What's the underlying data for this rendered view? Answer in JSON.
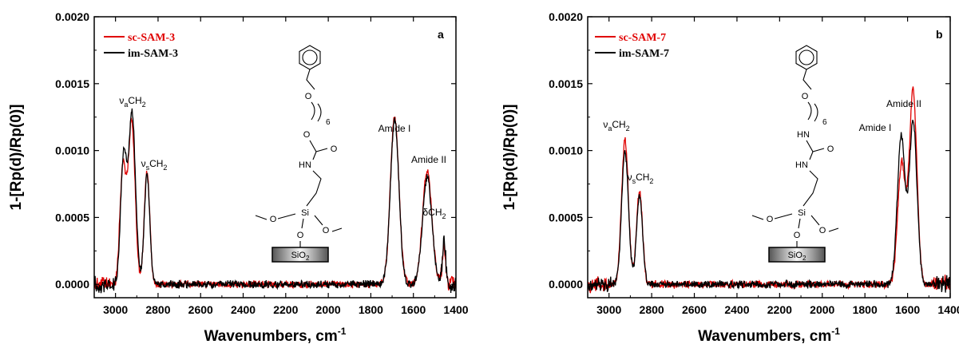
{
  "chart_data": [
    {
      "type": "line",
      "panel_label": "a",
      "xlabel": "Wavenumbers, cm",
      "xlabel_sup": "-1",
      "ylabel": "1-[Rp(d)/Rp(0)]",
      "xlim": [
        3100,
        1400
      ],
      "ylim": [
        -0.0001,
        0.002
      ],
      "x_ticks": [
        "3000",
        "2800",
        "2600",
        "2400",
        "2200",
        "2000",
        "1800",
        "1600",
        "1400"
      ],
      "y_ticks": [
        "0.0000",
        "0.0005",
        "0.0010",
        "0.0015",
        "0.0020"
      ],
      "legend_position": "top-left",
      "series": [
        {
          "name": "sc-SAM-3",
          "color": "#e00000",
          "peaks": [
            [
              2965,
              0.00088,
              14
            ],
            [
              2924,
              0.00122,
              16
            ],
            [
              2852,
              0.00084,
              13
            ],
            [
              1688,
              0.00125,
              20
            ],
            [
              1535,
              0.00085,
              22
            ],
            [
              1456,
              0.00028,
              8
            ]
          ]
        },
        {
          "name": "im-SAM-3",
          "color": "#000000",
          "peaks": [
            [
              2962,
              0.00095,
              14
            ],
            [
              2922,
              0.00128,
              16
            ],
            [
              2852,
              0.00082,
              13
            ],
            [
              1688,
              0.00123,
              20
            ],
            [
              1535,
              0.0008,
              22
            ],
            [
              1456,
              0.0003,
              8
            ]
          ]
        }
      ],
      "annotations": [
        {
          "text": "ν",
          "sub": "a",
          "tail": "CH",
          "tail_sub": "2"
        },
        {
          "text": "ν",
          "sub": "s",
          "tail": "CH",
          "tail_sub": "2"
        },
        {
          "text": "Amide I"
        },
        {
          "text": "Amide II"
        },
        {
          "text": "δCH",
          "tail_sub": "2"
        }
      ],
      "structure": {
        "repeat": "6",
        "atoms": [
          "O",
          "O",
          "O",
          "HN",
          "Si",
          "O",
          "O",
          "O"
        ],
        "substrate": "SiO",
        "substrate_sub": "2"
      }
    },
    {
      "type": "line",
      "panel_label": "b",
      "xlabel": "Wavenumbers, cm",
      "xlabel_sup": "-1",
      "ylabel": "1-[Rp(d)/Rp(0)]",
      "xlim": [
        3100,
        1400
      ],
      "ylim": [
        -0.0001,
        0.002
      ],
      "x_ticks": [
        "3000",
        "2800",
        "2600",
        "2400",
        "2200",
        "2000",
        "1800",
        "1600",
        "1400"
      ],
      "y_ticks": [
        "0.0000",
        "0.0005",
        "0.0010",
        "0.0015",
        "0.0020"
      ],
      "legend_position": "top-left",
      "series": [
        {
          "name": "sc-SAM-7",
          "color": "#e00000",
          "peaks": [
            [
              2925,
              0.00108,
              16
            ],
            [
              2857,
              0.0007,
              14
            ],
            [
              1628,
              0.0009,
              18
            ],
            [
              1574,
              0.00145,
              18
            ]
          ]
        },
        {
          "name": "im-SAM-7",
          "color": "#000000",
          "peaks": [
            [
              2925,
              0.00099,
              16
            ],
            [
              2857,
              0.00066,
              14
            ],
            [
              1630,
              0.0011,
              18
            ],
            [
              1574,
              0.00122,
              18
            ]
          ]
        }
      ],
      "annotations": [
        {
          "text": "ν",
          "sub": "a",
          "tail": "CH",
          "tail_sub": "2"
        },
        {
          "text": "ν",
          "sub": "s",
          "tail": "CH",
          "tail_sub": "2"
        },
        {
          "text": "Amide I"
        },
        {
          "text": "Amide II"
        }
      ],
      "structure": {
        "repeat": "6",
        "atoms": [
          "O",
          "HN",
          "O",
          "HN",
          "Si",
          "O",
          "O",
          "O"
        ],
        "substrate": "SiO",
        "substrate_sub": "2"
      }
    }
  ]
}
